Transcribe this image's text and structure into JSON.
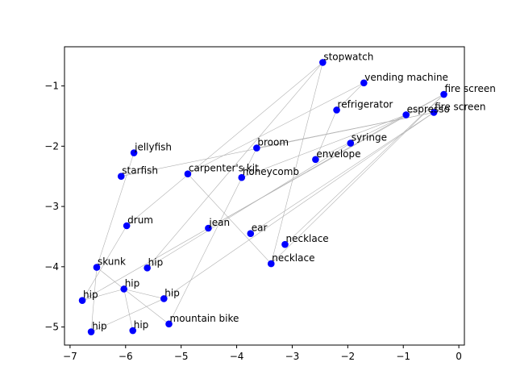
{
  "chart_data": {
    "type": "scatter",
    "title": "",
    "xlabel": "",
    "ylabel": "",
    "xlim": [
      -7.1,
      0.1
    ],
    "ylim": [
      -5.3,
      -0.35
    ],
    "xticks": [
      -7,
      -6,
      -5,
      -4,
      -3,
      -2,
      -1,
      0
    ],
    "yticks": [
      -5,
      -4,
      -3,
      -2,
      -1
    ],
    "grid": false,
    "colors": {
      "point": "#0000ff",
      "edge": "#b0b0b0",
      "axis": "#000000"
    },
    "points": [
      {
        "label": "stopwatch",
        "x": -2.45,
        "y": -0.61
      },
      {
        "label": "vending machine",
        "x": -1.71,
        "y": -0.95
      },
      {
        "label": "fire screen",
        "x": -0.27,
        "y": -1.14
      },
      {
        "label": "refrigerator",
        "x": -2.2,
        "y": -1.4
      },
      {
        "label": "espresso",
        "x": -0.95,
        "y": -1.48
      },
      {
        "label": "fire screen",
        "x": -0.45,
        "y": -1.44
      },
      {
        "label": "broom",
        "x": -3.64,
        "y": -2.03
      },
      {
        "label": "syringe",
        "x": -1.95,
        "y": -1.95
      },
      {
        "label": "envelope",
        "x": -2.58,
        "y": -2.22
      },
      {
        "label": "jellyfish",
        "x": -5.85,
        "y": -2.11
      },
      {
        "label": "starfish",
        "x": -6.08,
        "y": -2.5
      },
      {
        "label": "carpenter's kit",
        "x": -4.88,
        "y": -2.46
      },
      {
        "label": "honeycomb",
        "x": -3.91,
        "y": -2.52
      },
      {
        "label": "drum",
        "x": -5.98,
        "y": -3.32
      },
      {
        "label": "jean",
        "x": -4.51,
        "y": -3.36
      },
      {
        "label": "ear",
        "x": -3.75,
        "y": -3.45
      },
      {
        "label": "necklace",
        "x": -3.13,
        "y": -3.63
      },
      {
        "label": "necklace",
        "x": -3.38,
        "y": -3.95
      },
      {
        "label": "skunk",
        "x": -6.52,
        "y": -4.01
      },
      {
        "label": "hip",
        "x": -5.61,
        "y": -4.02
      },
      {
        "label": "hip",
        "x": -6.03,
        "y": -4.37
      },
      {
        "label": "hip",
        "x": -6.78,
        "y": -4.56
      },
      {
        "label": "hip",
        "x": -5.31,
        "y": -4.53
      },
      {
        "label": "mountain bike",
        "x": -5.22,
        "y": -4.95
      },
      {
        "label": "hip",
        "x": -6.62,
        "y": -5.08
      },
      {
        "label": "hip",
        "x": -5.87,
        "y": -5.06
      }
    ],
    "edges": [
      [
        0,
        13
      ],
      [
        0,
        17
      ],
      [
        0,
        19
      ],
      [
        1,
        3
      ],
      [
        1,
        11
      ],
      [
        2,
        4
      ],
      [
        2,
        14
      ],
      [
        2,
        16
      ],
      [
        2,
        17
      ],
      [
        3,
        8
      ],
      [
        4,
        8
      ],
      [
        4,
        12
      ],
      [
        4,
        21
      ],
      [
        5,
        6
      ],
      [
        5,
        10
      ],
      [
        5,
        15
      ],
      [
        5,
        22
      ],
      [
        6,
        23
      ],
      [
        7,
        19
      ],
      [
        9,
        18
      ],
      [
        11,
        17
      ],
      [
        13,
        21
      ],
      [
        18,
        20
      ],
      [
        18,
        24
      ],
      [
        20,
        21
      ],
      [
        20,
        22
      ],
      [
        20,
        25
      ],
      [
        20,
        23
      ],
      [
        22,
        24
      ]
    ]
  }
}
